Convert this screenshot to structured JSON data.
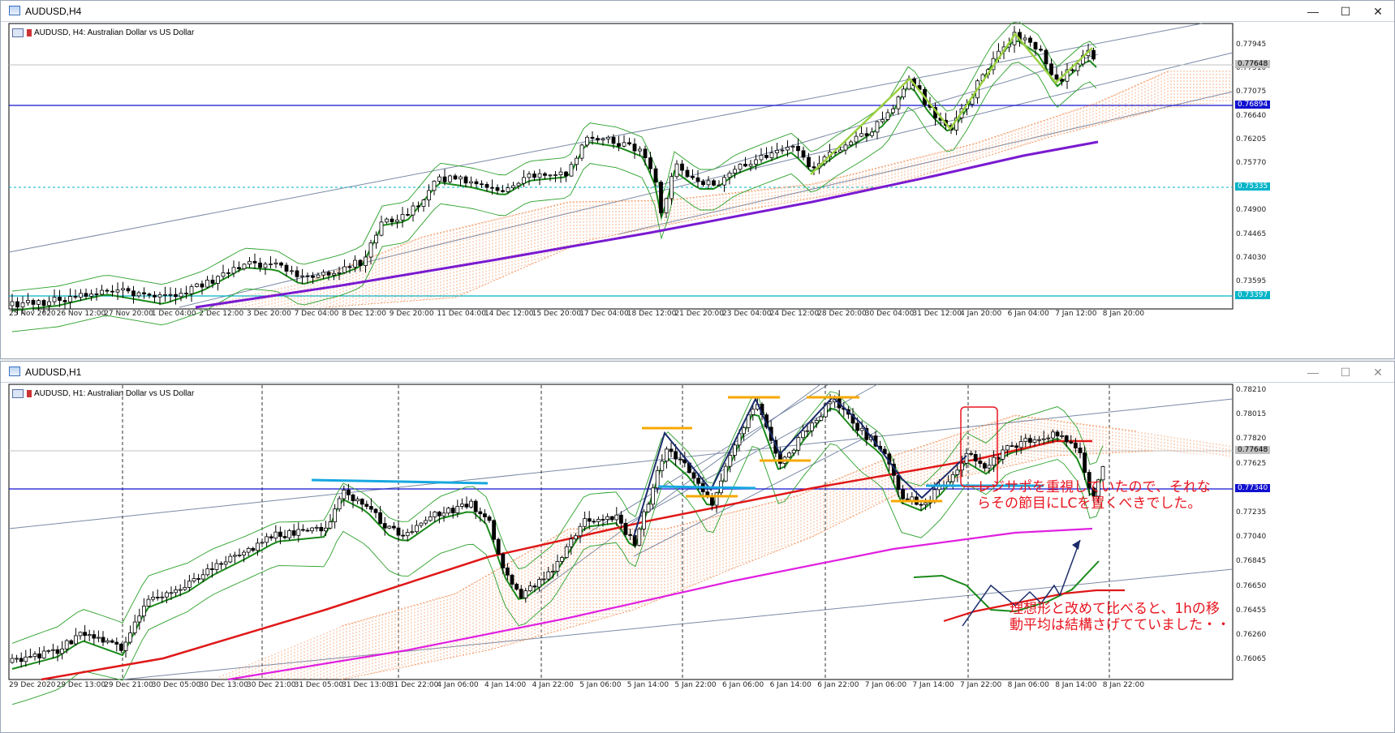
{
  "win_h4": {
    "title": "AUDUSD,H4",
    "caption": "AUDUSD, H4:  Australian Dollar vs US Dollar",
    "controls": {
      "minimize": "—",
      "maximize": "☐",
      "close": "✕"
    },
    "price_labels": [
      "0.77945",
      "0.77510",
      "0.77075",
      "0.76640",
      "0.76205",
      "0.75770",
      "0.75335",
      "0.74900",
      "0.74465",
      "0.74030",
      "0.73595"
    ],
    "boxed_labels": {
      "bid": "0.77648",
      "blue_line": "0.76894",
      "cyan_top": "0.75335",
      "cyan_bottom": "0.73397"
    },
    "time_labels": [
      "25 Nov 2020",
      "26 Nov 12:00",
      "27 Nov 20:00",
      "1 Dec 04:00",
      "2 Dec 12:00",
      "3 Dec 20:00",
      "7 Dec 04:00",
      "8 Dec 12:00",
      "9 Dec 20:00",
      "11 Dec 04:00",
      "14 Dec 12:00",
      "15 Dec 20:00",
      "17 Dec 04:00",
      "18 Dec 12:00",
      "21 Dec 20:00",
      "23 Dec 04:00",
      "24 Dec 12:00",
      "28 Dec 20:00",
      "30 Dec 04:00",
      "31 Dec 12:00",
      "4 Jan 20:00",
      "6 Jan 04:00",
      "7 Jan 12:00",
      "8 Jan 20:00"
    ]
  },
  "win_h1": {
    "title": "AUDUSD,H1",
    "caption": "AUDUSD, H1:  Australian Dollar vs US Dollar",
    "controls": {
      "minimize": "—",
      "maximize": "☐",
      "close": "✕"
    },
    "price_labels": [
      "0.78210",
      "0.78015",
      "0.77820",
      "0.77625",
      "0.77430",
      "0.77235",
      "0.77040",
      "0.76845",
      "0.76650",
      "0.76455",
      "0.76260",
      "0.76065"
    ],
    "boxed_labels": {
      "bid": "0.77648",
      "blue_line": "0.77340"
    },
    "time_labels": [
      "29 Dec 2020",
      "29 Dec 13:00",
      "29 Dec 21:00",
      "30 Dec 05:00",
      "30 Dec 13:00",
      "30 Dec 21:00",
      "31 Dec 05:00",
      "31 Dec 13:00",
      "31 Dec 22:00",
      "4 Jan 06:00",
      "4 Jan 14:00",
      "4 Jan 22:00",
      "5 Jan 06:00",
      "5 Jan 14:00",
      "5 Jan 22:00",
      "6 Jan 06:00",
      "6 Jan 14:00",
      "6 Jan 22:00",
      "7 Jan 06:00",
      "7 Jan 14:00",
      "7 Jan 22:00",
      "8 Jan 06:00",
      "8 Jan 14:00",
      "8 Jan 22:00"
    ],
    "annotations": {
      "note1": [
        "レジサポを重視していたので、それな",
        "らその節目にLCを置くべきでした。"
      ],
      "note2": [
        "理想形と改めて比べると、1hの移",
        "動平均は結構さげてていました・・"
      ]
    }
  },
  "colors": {
    "blue_line": "#1010d0",
    "cyan": "#00b4c8",
    "annotation": "#e8141e",
    "sma_green": "#1a8a1a",
    "sma_red": "#e01818",
    "sma_purple": "#7a1ad0",
    "sma_magenta": "#e020e0",
    "zigzag_lime": "#9ad040",
    "zigzag_navy": "#1c2c6a",
    "level_orange": "#f7a800",
    "level_cyan": "#16a8e0",
    "cloud": "#f08040"
  }
}
